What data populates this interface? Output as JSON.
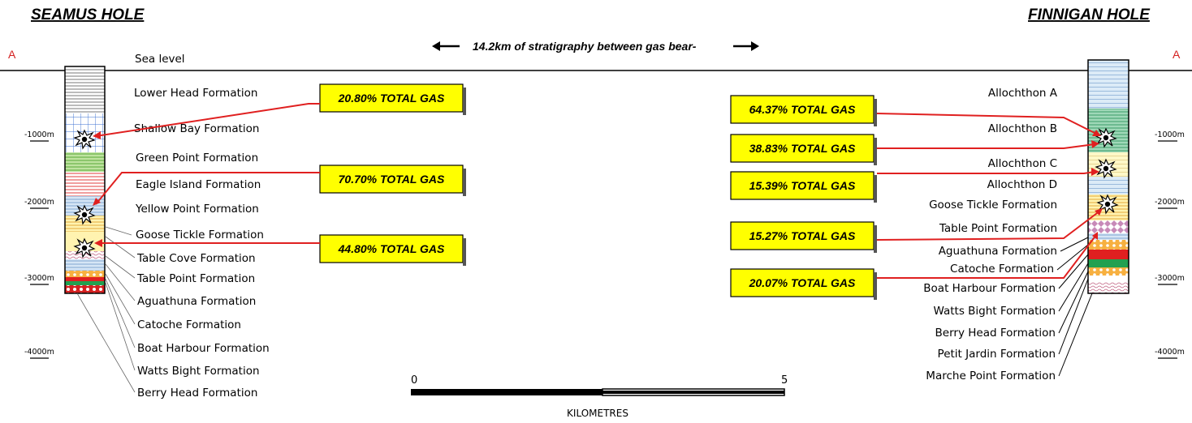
{
  "left_hole": {
    "title": "SEAMUS HOLE",
    "section_marker": "A",
    "sea_level_label": "Sea level",
    "depth_labels": [
      "-1000m",
      "-2000m",
      "-3000m",
      "-4000m"
    ],
    "formations": [
      "Lower Head Formation",
      "Shallow Bay Formation",
      "Green Point Formation",
      "Eagle Island Formation",
      "Yellow Point Formation",
      "Goose Tickle Formation",
      "Table Cove Formation",
      "Table Point Formation",
      "Aguathuna Formation",
      "Catoche Formation",
      "Boat Harbour Formation",
      "Watts Bight Formation",
      "Berry Head Formation"
    ],
    "gas_labels": [
      "20.80% TOTAL GAS",
      "70.70% TOTAL GAS",
      "44.80% TOTAL GAS"
    ]
  },
  "right_hole": {
    "title": "FINNIGAN HOLE",
    "section_marker": "A",
    "depth_labels": [
      "-1000m",
      "-2000m",
      "-3000m",
      "-4000m"
    ],
    "formations": [
      "Allochthon A",
      "Allochthon B",
      "Allochthon C",
      "Allochthon D",
      "Goose Tickle Formation",
      "Table Point Formation",
      "Aguathuna Formation",
      "Catoche Formation",
      "Boat Harbour Formation",
      "Watts Bight Formation",
      "Berry Head Formation",
      "Petit Jardin Formation",
      "Marche Point Formation"
    ],
    "gas_labels": [
      "64.37% TOTAL GAS",
      "38.83% TOTAL GAS",
      "15.39% TOTAL GAS",
      "15.27% TOTAL GAS",
      "20.07% TOTAL GAS"
    ]
  },
  "stratigraphy_note": "14.2km of stratigraphy between gas bear-",
  "scale_bar": {
    "start_label": "0",
    "end_label": "5",
    "unit_label": "KILOMETRES"
  },
  "colors": {
    "gas_box_fill": "#ffff00",
    "leader_red": "#e02020",
    "section_marker": "#d42020"
  }
}
